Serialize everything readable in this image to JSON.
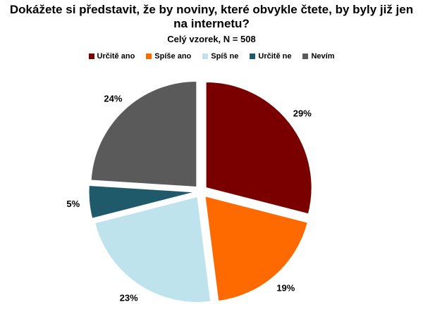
{
  "chart_data": {
    "type": "pie",
    "title": "Dokážete si představit, že by noviny, které  obvykle čtete, by byly již jen na internetu?",
    "subtitle": "Celý vzorek, N = 508",
    "legend_position": "top",
    "slices": [
      {
        "label": "Určitě ano",
        "value": 29,
        "value_label": "29%",
        "color": "#7a0000"
      },
      {
        "label": "Spíše ano",
        "value": 19,
        "value_label": "19%",
        "color": "#ff6a00"
      },
      {
        "label": "Spíš ne",
        "value": 23,
        "value_label": "23%",
        "color": "#bfe3ec"
      },
      {
        "label": "Určitě ne",
        "value": 5,
        "value_label": "5%",
        "color": "#1f5a6b"
      },
      {
        "label": "Nevím",
        "value": 24,
        "value_label": "24%",
        "color": "#5a5a5a"
      }
    ]
  }
}
